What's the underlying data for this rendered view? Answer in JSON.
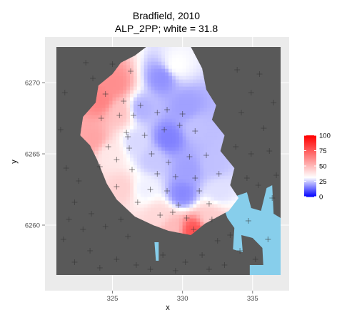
{
  "chart_data": {
    "type": "heatmap",
    "title": "Bradfield, 2010",
    "subtitle": "ALP_2PP; white = 31.8",
    "xlabel": "x",
    "ylabel": "y",
    "xlim": [
      321,
      337
    ],
    "ylim": [
      6256.5,
      6272.5
    ],
    "x_ticks": [
      325,
      330,
      335
    ],
    "y_ticks": [
      6260,
      6265,
      6270
    ],
    "colorbar": {
      "ticks": [
        0,
        25,
        50,
        75,
        100
      ],
      "range": [
        0,
        100
      ],
      "low_color": "#0000ff",
      "mid_color": "#ffffff",
      "high_color": "#ff0000",
      "midpoint": 31.8
    },
    "panel_background": "#595959",
    "grid_background": "#ebebeb",
    "water_color": "#87ceeb",
    "electorate_region": [
      [
        327.4,
        6272.5
      ],
      [
        330.6,
        6272.5
      ],
      [
        331.4,
        6271.0
      ],
      [
        331.7,
        6269.5
      ],
      [
        332.4,
        6268.4
      ],
      [
        332.1,
        6267.4
      ],
      [
        333.0,
        6266.3
      ],
      [
        332.7,
        6265.2
      ],
      [
        333.7,
        6264.0
      ],
      [
        333.4,
        6262.8
      ],
      [
        334.0,
        6261.9
      ],
      [
        333.3,
        6261.0
      ],
      [
        331.6,
        6260.1
      ],
      [
        330.6,
        6259.3
      ],
      [
        329.0,
        6259.6
      ],
      [
        327.9,
        6260.0
      ],
      [
        326.6,
        6260.6
      ],
      [
        325.3,
        6261.8
      ],
      [
        324.6,
        6262.9
      ],
      [
        323.9,
        6264.6
      ],
      [
        323.4,
        6265.6
      ],
      [
        322.7,
        6266.3
      ],
      [
        322.9,
        6267.6
      ],
      [
        323.8,
        6268.6
      ],
      [
        324.0,
        6269.8
      ],
      [
        325.0,
        6270.6
      ],
      [
        325.6,
        6271.4
      ],
      [
        326.6,
        6271.9
      ]
    ],
    "surface_anchors": [
      {
        "x": 329.5,
        "y": 6271.2,
        "v": 32
      },
      {
        "x": 328.6,
        "y": 6270.4,
        "v": 18
      },
      {
        "x": 325.1,
        "y": 6269.9,
        "v": 62
      },
      {
        "x": 324.2,
        "y": 6268.8,
        "v": 65
      },
      {
        "x": 325.5,
        "y": 6268.0,
        "v": 48
      },
      {
        "x": 327.0,
        "y": 6268.2,
        "v": 22
      },
      {
        "x": 330.3,
        "y": 6268.3,
        "v": 20
      },
      {
        "x": 331.0,
        "y": 6266.9,
        "v": 24
      },
      {
        "x": 329.0,
        "y": 6266.1,
        "v": 16
      },
      {
        "x": 326.7,
        "y": 6265.8,
        "v": 27
      },
      {
        "x": 323.6,
        "y": 6266.0,
        "v": 56
      },
      {
        "x": 324.8,
        "y": 6265.0,
        "v": 38
      },
      {
        "x": 327.9,
        "y": 6264.6,
        "v": 25
      },
      {
        "x": 330.4,
        "y": 6263.9,
        "v": 20
      },
      {
        "x": 332.2,
        "y": 6264.3,
        "v": 24
      },
      {
        "x": 325.7,
        "y": 6262.6,
        "v": 44
      },
      {
        "x": 327.3,
        "y": 6262.6,
        "v": 30
      },
      {
        "x": 330.0,
        "y": 6262.2,
        "v": 17
      },
      {
        "x": 332.6,
        "y": 6262.4,
        "v": 28
      },
      {
        "x": 328.3,
        "y": 6260.6,
        "v": 42
      },
      {
        "x": 330.8,
        "y": 6259.6,
        "v": 78
      },
      {
        "x": 332.0,
        "y": 6260.5,
        "v": 45
      },
      {
        "x": 329.2,
        "y": 6259.8,
        "v": 50
      }
    ],
    "booths": [
      [
        325.0,
        6271.3
      ],
      [
        326.3,
        6270.8
      ],
      [
        323.6,
        6270.3
      ],
      [
        324.5,
        6269.2
      ],
      [
        325.8,
        6268.7
      ],
      [
        327.0,
        6268.4
      ],
      [
        326.5,
        6267.7
      ],
      [
        325.5,
        6267.7
      ],
      [
        328.2,
        6267.9
      ],
      [
        328.9,
        6268.1
      ],
      [
        330.0,
        6267.8
      ],
      [
        324.2,
        6267.5
      ],
      [
        326.0,
        6266.5
      ],
      [
        327.3,
        6266.3
      ],
      [
        326.1,
        6266.2
      ],
      [
        328.7,
        6266.7
      ],
      [
        329.8,
        6267.0
      ],
      [
        330.9,
        6266.6
      ],
      [
        324.7,
        6265.5
      ],
      [
        326.2,
        6265.4
      ],
      [
        327.8,
        6265.0
      ],
      [
        325.3,
        6264.6
      ],
      [
        329.0,
        6264.4
      ],
      [
        330.5,
        6264.8
      ],
      [
        331.7,
        6264.9
      ],
      [
        324.1,
        6264.1
      ],
      [
        326.4,
        6263.9
      ],
      [
        328.2,
        6263.6
      ],
      [
        329.5,
        6263.4
      ],
      [
        330.9,
        6263.3
      ],
      [
        332.6,
        6263.6
      ],
      [
        325.3,
        6262.7
      ],
      [
        327.7,
        6262.5
      ],
      [
        328.9,
        6262.4
      ],
      [
        331.2,
        6262.4
      ],
      [
        326.8,
        6261.6
      ],
      [
        329.7,
        6261.4
      ],
      [
        331.9,
        6261.5
      ],
      [
        328.4,
        6260.7
      ],
      [
        330.3,
        6260.5
      ],
      [
        330.8,
        6259.7
      ],
      [
        329.3,
        6260.9
      ],
      [
        332.1,
        6260.4
      ],
      [
        321.3,
        6266.7
      ],
      [
        321.7,
        6264.0
      ],
      [
        322.6,
        6263.1
      ],
      [
        322.3,
        6261.6
      ],
      [
        321.9,
        6260.4
      ],
      [
        322.9,
        6259.7
      ],
      [
        321.5,
        6259.0
      ],
      [
        323.4,
        6258.2
      ],
      [
        322.3,
        6257.4
      ],
      [
        324.1,
        6257.0
      ],
      [
        325.3,
        6257.6
      ],
      [
        326.7,
        6257.2
      ],
      [
        327.7,
        6256.9
      ],
      [
        328.6,
        6257.9
      ],
      [
        326.1,
        6259.2
      ],
      [
        324.5,
        6259.9
      ],
      [
        325.6,
        6260.4
      ],
      [
        323.5,
        6260.8
      ],
      [
        323.1,
        6271.4
      ],
      [
        321.6,
        6269.3
      ],
      [
        333.9,
        6270.9
      ],
      [
        334.9,
        6269.3
      ],
      [
        335.5,
        6270.6
      ],
      [
        336.5,
        6268.6
      ],
      [
        334.2,
        6267.9
      ],
      [
        335.8,
        6266.8
      ],
      [
        333.8,
        6265.5
      ],
      [
        334.9,
        6265.0
      ],
      [
        336.2,
        6265.2
      ],
      [
        336.7,
        6263.5
      ],
      [
        335.4,
        6262.8
      ],
      [
        334.6,
        6263.3
      ],
      [
        336.4,
        6261.9
      ],
      [
        333.4,
        6259.3
      ],
      [
        332.5,
        6258.9
      ],
      [
        334.1,
        6258.2
      ],
      [
        331.4,
        6257.9
      ],
      [
        330.2,
        6257.4
      ],
      [
        333.0,
        6257.2
      ],
      [
        335.2,
        6257.6
      ],
      [
        336.1,
        6259.0
      ],
      [
        331.9,
        6256.9
      ],
      [
        329.5,
        6256.8
      ],
      [
        334.7,
        6260.3
      ]
    ]
  }
}
